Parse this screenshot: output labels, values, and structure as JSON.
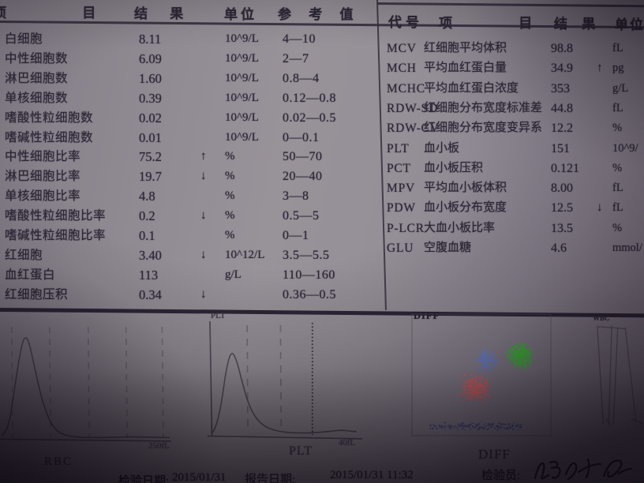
{
  "left_table": {
    "headers": {
      "item": "项 目",
      "result": "结 果",
      "unit": "单位",
      "reference": "参 考 值"
    },
    "rows": [
      {
        "name": "白细胞",
        "result": "8.11",
        "flag": "",
        "unit": "10^9/L",
        "ref": "4—10"
      },
      {
        "name": "中性细胞数",
        "result": "6.09",
        "flag": "",
        "unit": "10^9/L",
        "ref": "2—7"
      },
      {
        "name": "淋巴细胞数",
        "result": "1.60",
        "flag": "",
        "unit": "10^9/L",
        "ref": "0.8—4"
      },
      {
        "name": "单核细胞数",
        "result": "0.39",
        "flag": "",
        "unit": "10^9/L",
        "ref": "0.12—0.8"
      },
      {
        "name": "嗜酸性粒细胞数",
        "result": "0.02",
        "flag": "",
        "unit": "10^9/L",
        "ref": "0.02—0.5"
      },
      {
        "name": "嗜碱性粒细胞数",
        "result": "0.01",
        "flag": "",
        "unit": "10^9/L",
        "ref": "0—0.1"
      },
      {
        "name": "中性细胞比率",
        "result": "75.2",
        "flag": "↑",
        "unit": "%",
        "ref": "50—70"
      },
      {
        "name": "淋巴细胞比率",
        "result": "19.7",
        "flag": "↓",
        "unit": "%",
        "ref": "20—40"
      },
      {
        "name": "单核细胞比率",
        "result": "4.8",
        "flag": "",
        "unit": "%",
        "ref": "3—8"
      },
      {
        "name": "嗜酸性粒细胞比率",
        "result": "0.2",
        "flag": "↓",
        "unit": "%",
        "ref": "0.5—5"
      },
      {
        "name": "嗜碱性粒细胞比率",
        "result": "0.1",
        "flag": "",
        "unit": "%",
        "ref": "0—1"
      },
      {
        "name": "红细胞",
        "result": "3.40",
        "flag": "↓",
        "unit": "10^12/L",
        "ref": "3.5—5.5"
      },
      {
        "name": "血红蛋白",
        "result": "113",
        "flag": "",
        "unit": "g/L",
        "ref": "110—160"
      },
      {
        "name": "红细胞压积",
        "result": "0.34",
        "flag": "↓",
        "unit": "",
        "ref": "0.36—0.5"
      }
    ]
  },
  "right_table": {
    "headers": {
      "code": "代号",
      "item": "项 目",
      "result": "结 果",
      "unit": "单位"
    },
    "rows": [
      {
        "code": "MCV",
        "name": "红细胞平均体积",
        "result": "98.8",
        "flag": "",
        "unit": "fL"
      },
      {
        "code": "MCH",
        "name": "平均血红蛋白量",
        "result": "34.9",
        "flag": "↑",
        "unit": "pg"
      },
      {
        "code": "MCHC",
        "name": "平均血红蛋白浓度",
        "result": "353",
        "flag": "",
        "unit": "g/L"
      },
      {
        "code": "RDW-SD",
        "name": "红细胞分布宽度标准差",
        "result": "44.8",
        "flag": "",
        "unit": "fL"
      },
      {
        "code": "RDW-CV",
        "name": "红细胞分布宽度变异系",
        "result": "12.2",
        "flag": "",
        "unit": "%"
      },
      {
        "code": "PLT",
        "name": "血小板",
        "result": "151",
        "flag": "",
        "unit": "10^9/"
      },
      {
        "code": "PCT",
        "name": "血小板压积",
        "result": "0.121",
        "flag": "",
        "unit": "%"
      },
      {
        "code": "MPV",
        "name": "平均血小板体积",
        "result": "8.00",
        "flag": "",
        "unit": "fL"
      },
      {
        "code": "PDW",
        "name": "血小板分布宽度",
        "result": "12.5",
        "flag": "↓",
        "unit": "fL"
      },
      {
        "code": "P-LCR",
        "name": "大血小板比率",
        "result": "13.5",
        "flag": "",
        "unit": "%"
      },
      {
        "code": "GLU",
        "name": "空腹血糖",
        "result": "4.6",
        "flag": "",
        "unit": "mmol/"
      }
    ]
  },
  "footer": {
    "exam_date_label": "检验日期:",
    "exam_date": "2015/01/31",
    "report_date_label": "报告日期:",
    "report_date": "2015/01/31 11:32",
    "examiner_label": "检验员:",
    "examiner_signature": "handwritten-signature"
  },
  "chart_data": [
    {
      "type": "area",
      "title": "RBC",
      "x_end_label": "250fL",
      "x_range_fl": [
        0,
        250
      ],
      "grid": "dashed-vertical",
      "gridlines": [
        0.06,
        0.285,
        0.515,
        0.74,
        0.955
      ],
      "curve": [
        [
          0,
          0.03
        ],
        [
          0.02,
          0.05
        ],
        [
          0.05,
          0.18
        ],
        [
          0.08,
          0.52
        ],
        [
          0.115,
          0.88
        ],
        [
          0.14,
          1.0
        ],
        [
          0.165,
          0.93
        ],
        [
          0.2,
          0.66
        ],
        [
          0.24,
          0.38
        ],
        [
          0.28,
          0.19
        ],
        [
          0.32,
          0.09
        ],
        [
          0.36,
          0.045
        ],
        [
          0.42,
          0.02
        ],
        [
          0.5,
          0.012
        ],
        [
          0.62,
          0.012
        ],
        [
          0.75,
          0.02
        ],
        [
          0.88,
          0.015
        ],
        [
          1,
          0.012
        ]
      ]
    },
    {
      "type": "area",
      "title": "PLT",
      "axis_title": "PLT",
      "x_end_label": "40fL",
      "x_range_fl": [
        0,
        40
      ],
      "grid": "dashed-vertical",
      "gridlines_dashed": [
        0.245,
        0.475
      ],
      "gridline_dotted": 0.695,
      "curve": [
        [
          0,
          0.02
        ],
        [
          0.03,
          0.08
        ],
        [
          0.07,
          0.38
        ],
        [
          0.1,
          0.75
        ],
        [
          0.135,
          0.97
        ],
        [
          0.17,
          0.88
        ],
        [
          0.21,
          0.62
        ],
        [
          0.25,
          0.38
        ],
        [
          0.3,
          0.21
        ],
        [
          0.36,
          0.11
        ],
        [
          0.43,
          0.06
        ],
        [
          0.52,
          0.035
        ],
        [
          0.62,
          0.03
        ],
        [
          0.72,
          0.035
        ],
        [
          0.82,
          0.05
        ],
        [
          0.9,
          0.065
        ],
        [
          0.96,
          0.05
        ],
        [
          1,
          0.045
        ]
      ]
    },
    {
      "type": "scatter",
      "title": "DIFF",
      "clusters": [
        {
          "name": "lymphocyte-cluster",
          "color": "#ef6a68",
          "cx": 0.45,
          "cy": 0.61,
          "rx": 0.145,
          "ry": 0.145,
          "count": 400
        },
        {
          "name": "monocyte-cluster",
          "color": "#6d8ae0",
          "cx": 0.535,
          "cy": 0.38,
          "rx": 0.105,
          "ry": 0.125,
          "count": 190
        },
        {
          "name": "neutrophil-cluster",
          "color": "#46c13e",
          "cx": 0.775,
          "cy": 0.345,
          "rx": 0.115,
          "ry": 0.135,
          "count": 520
        },
        {
          "name": "ghost-strip",
          "color": "#434a85",
          "cx": 0.46,
          "cy": 0.925,
          "rx": 0.33,
          "ry": 0.045,
          "count": 165
        }
      ]
    },
    {
      "type": "line",
      "title": "WBC",
      "segments": [
        [
          0.13,
          0.02,
          0.24,
          0.98
        ],
        [
          0.14,
          0.03,
          0.66,
          0.05
        ],
        [
          0.4,
          0.02,
          0.34,
          0.985
        ],
        [
          0.51,
          0.04,
          0.43,
          0.985
        ],
        [
          0.65,
          0.04,
          0.85,
          0.95
        ],
        [
          0.29,
          0.93,
          0.38,
          0.99
        ],
        [
          0.76,
          0.93,
          0.97,
          0.975
        ]
      ]
    }
  ]
}
